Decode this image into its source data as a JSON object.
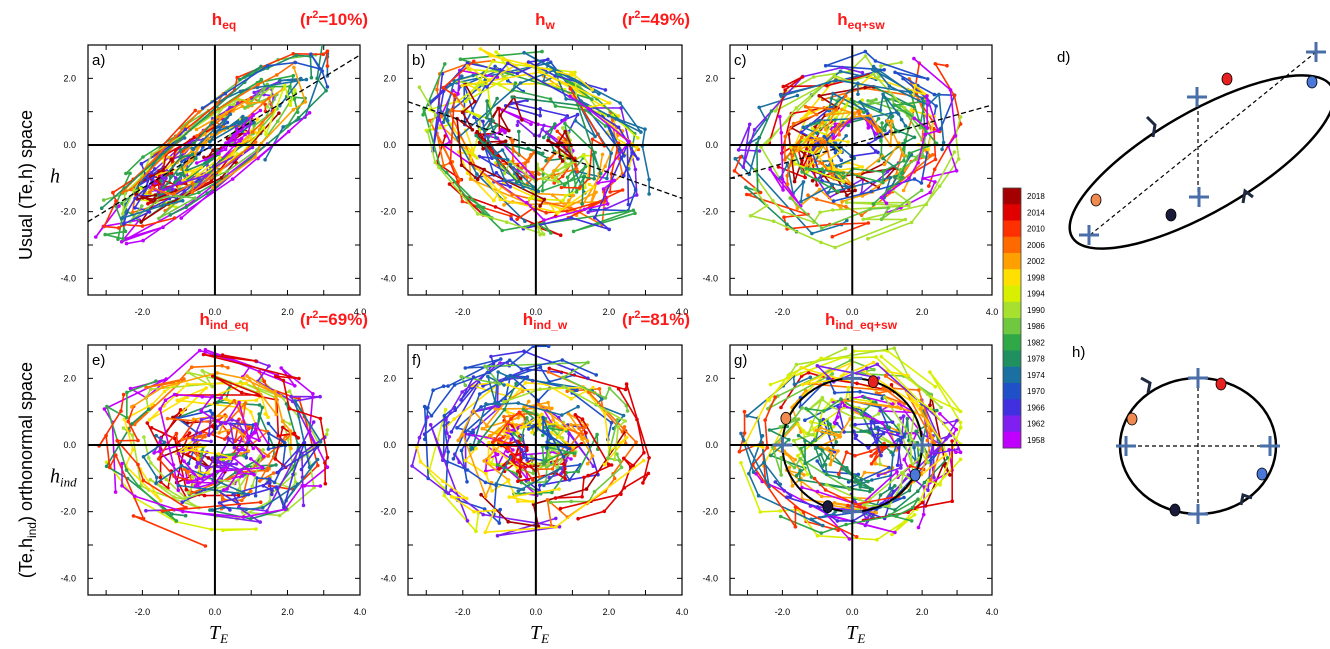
{
  "figure": {
    "row_labels": [
      "Usual (Te,h) space",
      "(Te,h",
      "ind",
      ") orthonormal space"
    ],
    "colorbar": {
      "labels": [
        "2018",
        "2014",
        "2010",
        "2006",
        "2002",
        "1998",
        "1994",
        "1990",
        "1986",
        "1982",
        "1978",
        "1974",
        "1970",
        "1966",
        "1962",
        "1958"
      ],
      "colors": [
        "#a50000",
        "#e00000",
        "#ff3000",
        "#ff6a00",
        "#ffa000",
        "#ffe000",
        "#d8f000",
        "#a8e030",
        "#70c840",
        "#30a848",
        "#209060",
        "#1a70a0",
        "#2050c8",
        "#4030e0",
        "#8020f0",
        "#c000ff"
      ]
    },
    "colors": {
      "title": "#ff1a1a",
      "ellipse_red": "#e82020",
      "ellipse_blue": "#4a78d8",
      "ellipse_orange": "#f08a50",
      "ellipse_navy": "#1a1a3a",
      "cross": "#4a6ea8"
    }
  },
  "panels": [
    {
      "id": "a",
      "label": "a)",
      "title_main": "h",
      "title_sub": "eq",
      "r2_pre": "(r",
      "r2_sup": "2",
      "r2_post": "=10%)",
      "ylabel": "h",
      "ylabel_sub": "",
      "xlabel": "",
      "xlabel_sub": ""
    },
    {
      "id": "b",
      "label": "b)",
      "title_main": "h",
      "title_sub": "w",
      "r2_pre": "(r",
      "r2_sup": "2",
      "r2_post": "=49%)",
      "ylabel": "",
      "ylabel_sub": "",
      "xlabel": "",
      "xlabel_sub": ""
    },
    {
      "id": "c",
      "label": "c)",
      "title_main": "h",
      "title_sub": "eq+sw",
      "r2_pre": "",
      "r2_sup": "",
      "r2_post": "",
      "ylabel": "",
      "ylabel_sub": "",
      "xlabel": "",
      "xlabel_sub": ""
    },
    {
      "id": "e",
      "label": "e)",
      "title_main": "h",
      "title_sub": "ind_eq",
      "r2_pre": "(r",
      "r2_sup": "2",
      "r2_post": "=69%)",
      "ylabel": "h",
      "ylabel_sub": "ind",
      "xlabel": "T",
      "xlabel_sub": "E"
    },
    {
      "id": "f",
      "label": "f)",
      "title_main": "h",
      "title_sub": "ind_w",
      "r2_pre": "(r",
      "r2_sup": "2",
      "r2_post": "=81%)",
      "ylabel": "",
      "ylabel_sub": "",
      "xlabel": "T",
      "xlabel_sub": "E"
    },
    {
      "id": "g",
      "label": "g)",
      "title_main": "h",
      "title_sub": "ind_eq+sw",
      "r2_pre": "",
      "r2_sup": "",
      "r2_post": "",
      "ylabel": "",
      "ylabel_sub": "",
      "xlabel": "T",
      "xlabel_sub": "E"
    }
  ],
  "schematics": [
    {
      "id": "d",
      "label": "d)"
    },
    {
      "id": "h",
      "label": "h)"
    }
  ],
  "chart_data": [
    {
      "type": "scatter",
      "panel": "a",
      "xlim": [
        -3.5,
        4.0
      ],
      "ylim": [
        -4.5,
        3.0
      ],
      "x_ticks": [
        "-2.0",
        "0.0",
        "2.0",
        "4.0"
      ],
      "y_ticks": [
        "-4.0",
        "-2.0",
        "0.0",
        "2.0"
      ],
      "regression_line": {
        "x": [
          -3.5,
          4.0
        ],
        "y": [
          -2.3,
          2.7
        ]
      },
      "series_count": 60,
      "seed": 11
    },
    {
      "type": "scatter",
      "panel": "b",
      "xlim": [
        -3.5,
        4.0
      ],
      "ylim": [
        -4.5,
        3.0
      ],
      "x_ticks": [
        "-2.0",
        "0.0",
        "2.0",
        "4.0"
      ],
      "y_ticks": [
        "-4.0",
        "-2.0",
        "0.0",
        "2.0"
      ],
      "regression_line": {
        "x": [
          -3.5,
          4.0
        ],
        "y": [
          1.3,
          -1.6
        ]
      },
      "series_count": 60,
      "seed": 23
    },
    {
      "type": "scatter",
      "panel": "c",
      "xlim": [
        -3.5,
        4.0
      ],
      "ylim": [
        -4.5,
        3.0
      ],
      "x_ticks": [
        "-2.0",
        "0.0",
        "2.0",
        "4.0"
      ],
      "y_ticks": [
        "-4.0",
        "-2.0",
        "0.0",
        "2.0"
      ],
      "regression_line": {
        "x": [
          -3.5,
          4.0
        ],
        "y": [
          -1.0,
          1.2
        ]
      },
      "series_count": 60,
      "seed": 37
    },
    {
      "type": "scatter",
      "panel": "e",
      "xlim": [
        -3.5,
        4.0
      ],
      "ylim": [
        -4.5,
        3.0
      ],
      "x_ticks": [
        "-2.0",
        "0.0",
        "2.0",
        "4.0"
      ],
      "y_ticks": [
        "-4.0",
        "-2.0",
        "0.0",
        "2.0"
      ],
      "regression_line": null,
      "series_count": 60,
      "seed": 41
    },
    {
      "type": "scatter",
      "panel": "f",
      "xlim": [
        -3.5,
        4.0
      ],
      "ylim": [
        -4.5,
        3.0
      ],
      "x_ticks": [
        "-2.0",
        "0.0",
        "2.0",
        "4.0"
      ],
      "y_ticks": [
        "-4.0",
        "-2.0",
        "0.0",
        "2.0"
      ],
      "regression_line": null,
      "series_count": 60,
      "seed": 53
    },
    {
      "type": "scatter",
      "panel": "g",
      "xlim": [
        -3.5,
        4.0
      ],
      "ylim": [
        -4.5,
        3.0
      ],
      "x_ticks": [
        "-2.0",
        "0.0",
        "2.0",
        "4.0"
      ],
      "y_ticks": [
        "-4.0",
        "-2.0",
        "0.0",
        "2.0"
      ],
      "regression_line": null,
      "circle": {
        "cx": 0.0,
        "cy": 0.0,
        "r": 2.0
      },
      "series_count": 60,
      "seed": 67
    }
  ]
}
